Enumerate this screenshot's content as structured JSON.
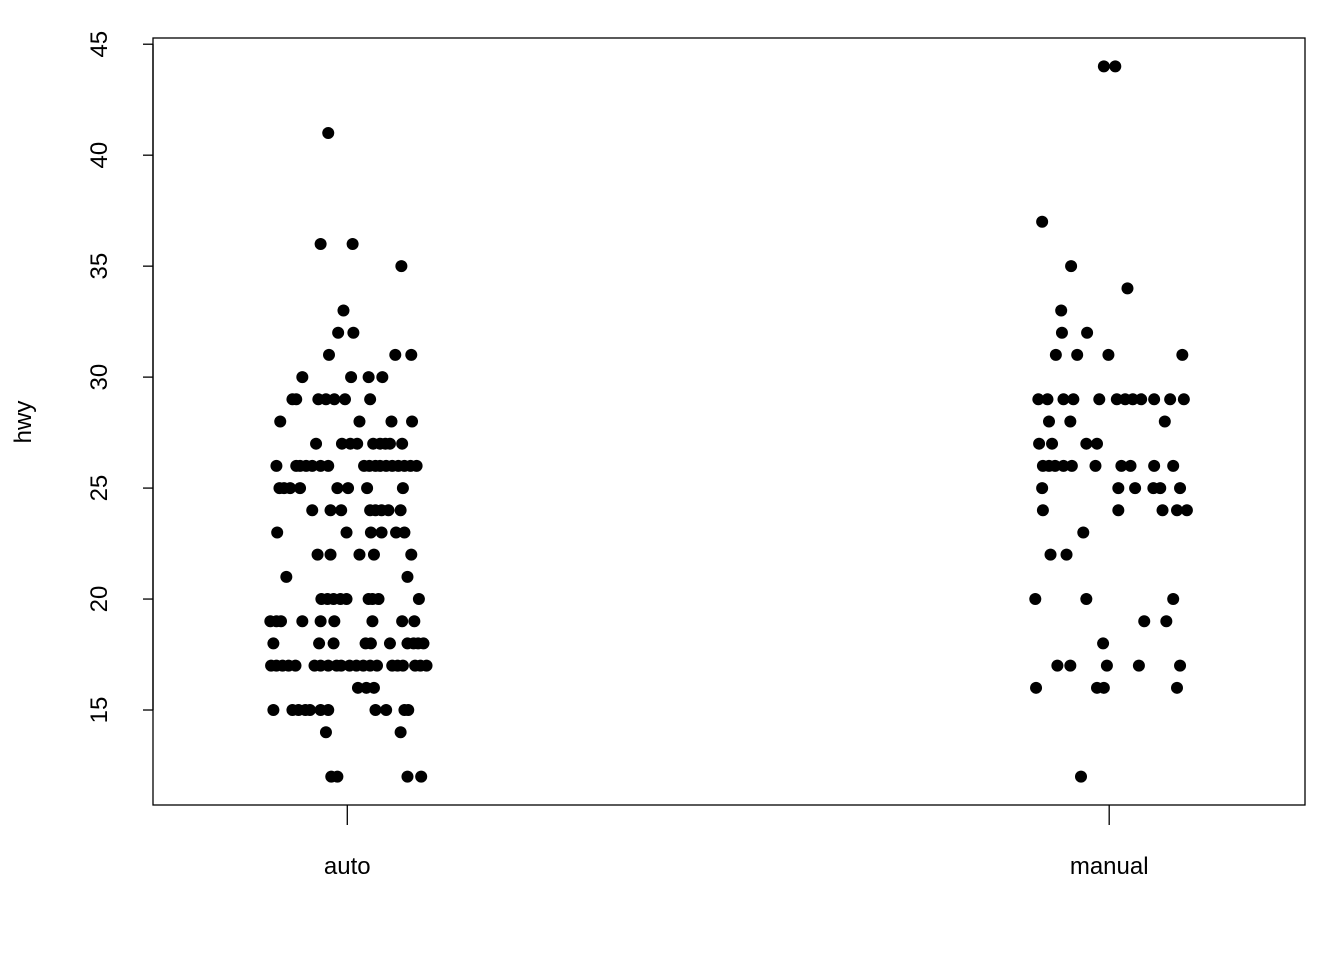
{
  "chart_data": {
    "type": "scatter",
    "subtype": "stripchart-jittered",
    "title": "",
    "xlabel": "",
    "ylabel": "hwy",
    "categories": [
      "auto",
      "manual"
    ],
    "xlim": [
      0.745,
      2.257
    ],
    "ylim": [
      10.72,
      45.28
    ],
    "yticks": [
      15,
      20,
      25,
      30,
      35,
      40,
      45
    ],
    "grid": false,
    "legend": "none",
    "point_color": "#000000",
    "groups": [
      {
        "category": "auto",
        "rows": [
          {
            "y": 41,
            "jitter": [
              -0.025
            ]
          },
          {
            "y": 36,
            "jitter": [
              -0.035,
              0.007
            ]
          },
          {
            "y": 35,
            "jitter": [
              0.071
            ]
          },
          {
            "y": 33,
            "jitter": [
              -0.005
            ]
          },
          {
            "y": 32,
            "jitter": [
              -0.012,
              0.008
            ]
          },
          {
            "y": 31,
            "jitter": [
              -0.024,
              0.063,
              0.084
            ]
          },
          {
            "y": 30,
            "jitter": [
              -0.059,
              0.005,
              0.028,
              0.046
            ]
          },
          {
            "y": 29,
            "jitter": [
              -0.072,
              -0.067,
              -0.038,
              -0.028,
              -0.017,
              -0.003,
              0.03
            ]
          },
          {
            "y": 28,
            "jitter": [
              -0.088,
              0.016,
              0.058,
              0.085
            ]
          },
          {
            "y": 27,
            "jitter": [
              -0.041,
              -0.007,
              0.004,
              0.013,
              0.034,
              0.043,
              0.05,
              0.056,
              0.072
            ]
          },
          {
            "y": 26,
            "jitter": [
              -0.093,
              -0.067,
              -0.062,
              -0.054,
              -0.046,
              -0.035,
              -0.025,
              0.022,
              0.029,
              0.037,
              0.043,
              0.051,
              0.059,
              0.067,
              0.075,
              0.083,
              0.091
            ]
          },
          {
            "y": 25,
            "jitter": [
              -0.089,
              -0.083,
              -0.075,
              -0.062,
              -0.013,
              0.001,
              0.026,
              0.073
            ]
          },
          {
            "y": 24,
            "jitter": [
              -0.046,
              -0.022,
              -0.008,
              0.03,
              0.037,
              0.045,
              0.054,
              0.07
            ]
          },
          {
            "y": 23,
            "jitter": [
              -0.092,
              -0.001,
              0.031,
              0.045,
              0.064,
              0.075
            ]
          },
          {
            "y": 22,
            "jitter": [
              -0.039,
              -0.022,
              0.016,
              0.035,
              0.084
            ]
          },
          {
            "y": 21,
            "jitter": [
              -0.08,
              0.079
            ]
          },
          {
            "y": 20,
            "jitter": [
              -0.034,
              -0.026,
              -0.018,
              -0.009,
              -0.001,
              0.028,
              0.033,
              0.041,
              0.094
            ]
          },
          {
            "y": 19,
            "jitter": [
              -0.101,
              -0.093,
              -0.087,
              -0.059,
              -0.035,
              -0.017,
              0.033,
              0.072,
              0.088
            ]
          },
          {
            "y": 18,
            "jitter": [
              -0.097,
              -0.037,
              -0.018,
              0.024,
              0.031,
              0.056,
              0.079,
              0.087,
              0.093,
              0.1
            ]
          },
          {
            "y": 17,
            "jitter": [
              -0.1,
              -0.093,
              -0.085,
              -0.077,
              -0.068,
              -0.043,
              -0.035,
              -0.025,
              -0.014,
              -0.008,
              0.003,
              0.012,
              0.021,
              0.03,
              0.039,
              0.059,
              0.066,
              0.073,
              0.089,
              0.096,
              0.104
            ]
          },
          {
            "y": 16,
            "jitter": [
              0.014,
              0.025,
              0.035
            ]
          },
          {
            "y": 15,
            "jitter": [
              -0.097,
              -0.072,
              -0.064,
              -0.055,
              -0.049,
              -0.035,
              -0.025,
              0.037,
              0.051,
              0.075,
              0.08
            ]
          },
          {
            "y": 14,
            "jitter": [
              -0.028,
              0.07
            ]
          },
          {
            "y": 12,
            "jitter": [
              -0.021,
              -0.013,
              0.079,
              0.097
            ]
          }
        ]
      },
      {
        "category": "manual",
        "rows": [
          {
            "y": 44,
            "jitter": [
              -0.007,
              0.008
            ]
          },
          {
            "y": 37,
            "jitter": [
              -0.088
            ]
          },
          {
            "y": 35,
            "jitter": [
              -0.05
            ]
          },
          {
            "y": 34,
            "jitter": [
              0.024
            ]
          },
          {
            "y": 33,
            "jitter": [
              -0.063
            ]
          },
          {
            "y": 32,
            "jitter": [
              -0.062,
              -0.029
            ]
          },
          {
            "y": 31,
            "jitter": [
              -0.07,
              -0.042,
              -0.001,
              0.096
            ]
          },
          {
            "y": 29,
            "jitter": [
              -0.093,
              -0.081,
              -0.06,
              -0.047,
              -0.013,
              0.01,
              0.021,
              0.031,
              0.042,
              0.059,
              0.08,
              0.098
            ]
          },
          {
            "y": 28,
            "jitter": [
              -0.079,
              -0.051,
              0.073
            ]
          },
          {
            "y": 27,
            "jitter": [
              -0.092,
              -0.075,
              -0.03,
              -0.016
            ]
          },
          {
            "y": 26,
            "jitter": [
              -0.087,
              -0.079,
              -0.071,
              -0.06,
              -0.049,
              -0.018,
              0.016,
              0.028,
              0.059,
              0.084
            ]
          },
          {
            "y": 25,
            "jitter": [
              -0.088,
              0.012,
              0.034,
              0.058,
              0.067,
              0.093
            ]
          },
          {
            "y": 24,
            "jitter": [
              -0.087,
              0.012,
              0.07,
              0.089,
              0.102
            ]
          },
          {
            "y": 23,
            "jitter": [
              -0.034
            ]
          },
          {
            "y": 22,
            "jitter": [
              -0.077,
              -0.056
            ]
          },
          {
            "y": 20,
            "jitter": [
              -0.097,
              -0.03,
              0.084
            ]
          },
          {
            "y": 19,
            "jitter": [
              0.046,
              0.075
            ]
          },
          {
            "y": 18,
            "jitter": [
              -0.008
            ]
          },
          {
            "y": 17,
            "jitter": [
              -0.068,
              -0.051,
              -0.003,
              0.039,
              0.093
            ]
          },
          {
            "y": 16,
            "jitter": [
              -0.096,
              -0.016,
              -0.007,
              0.089
            ]
          },
          {
            "y": 12,
            "jitter": [
              -0.037
            ]
          }
        ]
      }
    ]
  }
}
